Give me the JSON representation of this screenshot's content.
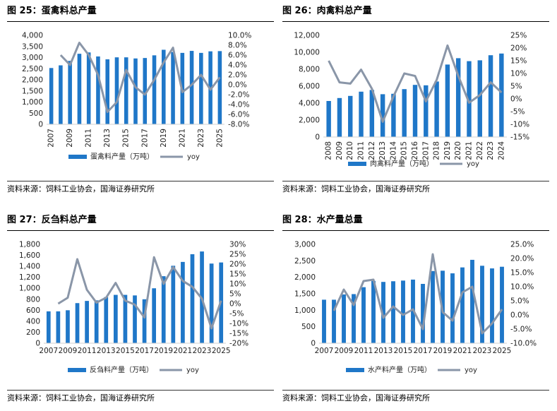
{
  "colors": {
    "bar": "#1f77c8",
    "line": "#8a96a8"
  },
  "chart_data": [
    {
      "type": "bar+line",
      "title": "图 25：蛋禽料总产量",
      "categories": [
        "2007",
        "2008",
        "2009",
        "2010",
        "2011",
        "2012",
        "2013",
        "2014",
        "2015",
        "2016",
        "2017",
        "2018",
        "2019",
        "2020",
        "2021",
        "2022",
        "2023",
        "2024",
        "2025"
      ],
      "x_tick_labels": [
        "2007",
        "2009",
        "2011",
        "2013",
        "2015",
        "2017",
        "2019",
        "2021",
        "2023",
        "2025"
      ],
      "series": [
        {
          "name": "蛋禽料产量（万吨）",
          "type": "bar",
          "axis": "left",
          "values": [
            2530,
            2650,
            2850,
            3170,
            3230,
            3050,
            2920,
            3010,
            3010,
            2960,
            2980,
            3100,
            3350,
            3250,
            3210,
            3300,
            3210,
            3280,
            3290
          ]
        },
        {
          "name": "yoy",
          "type": "line",
          "axis": "right",
          "values": [
            null,
            6.0,
            4.0,
            8.5,
            6.0,
            2.0,
            -5.5,
            -3.5,
            3.0,
            -0.5,
            -2.0,
            1.0,
            4.5,
            7.5,
            -1.5,
            0.0,
            2.0,
            -1.0,
            1.5
          ]
        }
      ],
      "left_ticks": [
        "0",
        "500",
        "1,000",
        "1,500",
        "2,000",
        "2,500",
        "3,000",
        "3,500",
        "4,000"
      ],
      "right_ticks": [
        "-8.0%",
        "-6.0%",
        "-4.0%",
        "-2.0%",
        "0.0%",
        "2.0%",
        "4.0%",
        "6.0%",
        "8.0%",
        "10.0%"
      ],
      "ylim_left": [
        0,
        4000
      ],
      "ylim_right": [
        -8,
        10
      ],
      "legend_position": "bottom",
      "source": "资料来源：饲料工业协会，国海证券研究所"
    },
    {
      "type": "bar+line",
      "title": "图 26：肉禽料总产量",
      "categories": [
        "2008",
        "2009",
        "2010",
        "2011",
        "2012",
        "2013",
        "2014",
        "2015",
        "2016",
        "2017",
        "2018",
        "2019",
        "2020",
        "2021",
        "2022",
        "2023",
        "2024"
      ],
      "x_tick_labels": [
        "2008",
        "2009",
        "2010",
        "2011",
        "2012",
        "2013",
        "2014",
        "2015",
        "2016",
        "2017",
        "2018",
        "2019",
        "2020",
        "2021",
        "2022",
        "2023",
        "2024"
      ],
      "series": [
        {
          "name": "肉禽料产量（万吨）",
          "type": "bar",
          "axis": "left",
          "values": [
            4250,
            4600,
            4850,
            5350,
            5550,
            5050,
            5100,
            5650,
            6150,
            6100,
            6550,
            8550,
            9300,
            8950,
            9050,
            9650,
            9850
          ]
        },
        {
          "name": "yoy",
          "type": "line",
          "axis": "right",
          "values": [
            15.0,
            6.5,
            6.0,
            11.5,
            4.0,
            -9.0,
            1.0,
            10.0,
            9.0,
            -1.0,
            7.5,
            21.0,
            9.0,
            -1.5,
            1.5,
            6.5,
            2.5
          ]
        }
      ],
      "left_ticks": [
        "0",
        "2,000",
        "4,000",
        "6,000",
        "8,000",
        "10,000",
        "12,000"
      ],
      "right_ticks": [
        "-15%",
        "-10%",
        "-5%",
        "0%",
        "5%",
        "10%",
        "15%",
        "20%",
        "25%"
      ],
      "ylim_left": [
        0,
        12000
      ],
      "ylim_right": [
        -15,
        25
      ],
      "legend_position": "bottom",
      "source": "资料来源：饲料工业协会，国海证券研究所"
    },
    {
      "type": "bar+line",
      "title": "图 27：反刍料总产量",
      "categories": [
        "2007",
        "2008",
        "2009",
        "2010",
        "2011",
        "2012",
        "2013",
        "2014",
        "2015",
        "2016",
        "2017",
        "2018",
        "2019",
        "2020",
        "2021",
        "2022",
        "2023",
        "2024",
        "2025"
      ],
      "x_tick_labels": [
        "2007",
        "2009",
        "2011",
        "2013",
        "2015",
        "2017",
        "2019",
        "2021",
        "2023",
        "2025"
      ],
      "series": [
        {
          "name": "反刍料产量（万吨）",
          "type": "bar",
          "axis": "left",
          "values": [
            580,
            580,
            600,
            730,
            770,
            780,
            840,
            880,
            880,
            870,
            800,
            1000,
            1220,
            1410,
            1480,
            1620,
            1670,
            1450,
            1470
          ]
        },
        {
          "name": "yoy",
          "type": "line",
          "axis": "right",
          "values": [
            null,
            0.0,
            3.0,
            22.5,
            7.0,
            0.5,
            3.0,
            10.5,
            1.5,
            -0.5,
            -7.0,
            23.5,
            10.0,
            18.5,
            11.5,
            8.5,
            2.5,
            -12.5,
            1.5
          ]
        }
      ],
      "left_ticks": [
        "0",
        "200",
        "400",
        "600",
        "800",
        "1,000",
        "1,200",
        "1,400",
        "1,600",
        "1,800"
      ],
      "right_ticks": [
        "-20%",
        "-15%",
        "-10%",
        "-5%",
        "0%",
        "5%",
        "10%",
        "15%",
        "20%",
        "25%",
        "30%"
      ],
      "ylim_left": [
        0,
        1800
      ],
      "ylim_right": [
        -20,
        30
      ],
      "legend_position": "bottom",
      "source": "资料来源：饲料工业协会，国海证券研究所"
    },
    {
      "type": "bar+line",
      "title": "图 28：水产量总量",
      "categories": [
        "2007",
        "2008",
        "2009",
        "2010",
        "2011",
        "2012",
        "2013",
        "2014",
        "2015",
        "2016",
        "2017",
        "2018",
        "2019",
        "2020",
        "2021",
        "2022",
        "2023",
        "2024",
        "2025"
      ],
      "x_tick_labels": [
        "2007",
        "2009",
        "2011",
        "2013",
        "2015",
        "2017",
        "2019",
        "2021",
        "2023",
        "2025"
      ],
      "series": [
        {
          "name": "水产料产量（万吨）",
          "type": "bar",
          "axis": "left",
          "values": [
            1320,
            1320,
            1480,
            1490,
            1700,
            1890,
            1860,
            1880,
            1900,
            1930,
            1800,
            2190,
            2200,
            2120,
            2300,
            2530,
            2350,
            2270,
            2320
          ]
        },
        {
          "name": "yoy",
          "type": "line",
          "axis": "right",
          "values": [
            null,
            1.5,
            9.0,
            3.5,
            12.0,
            12.5,
            -1.0,
            3.0,
            0.0,
            2.0,
            -5.0,
            21.5,
            1.0,
            -2.0,
            8.0,
            10.0,
            -6.5,
            -3.0,
            2.0
          ]
        }
      ],
      "left_ticks": [
        "0",
        "500",
        "1,000",
        "1,500",
        "2,000",
        "2,500",
        "3,000"
      ],
      "right_ticks": [
        "-10.0%",
        "-5.0%",
        "0.0%",
        "5.0%",
        "10.0%",
        "15.0%",
        "20.0%",
        "25.0%"
      ],
      "ylim_left": [
        0,
        3000
      ],
      "ylim_right": [
        -10,
        25
      ],
      "legend_position": "bottom",
      "source": "资料来源：饲料工业协会，国海证券研究所"
    }
  ]
}
